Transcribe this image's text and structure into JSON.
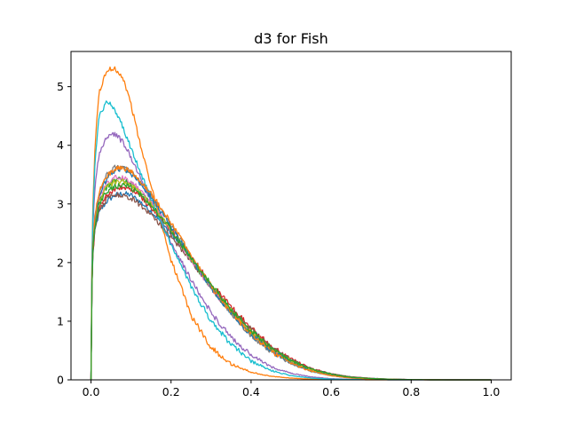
{
  "chart_data": {
    "type": "line",
    "title": "d3 for Fish",
    "xlabel": "",
    "ylabel": "",
    "xlim": [
      -0.05,
      1.05
    ],
    "ylim": [
      0,
      5.6
    ],
    "x_ticks": [
      0.0,
      0.2,
      0.4,
      0.6,
      0.8,
      1.0
    ],
    "x_tick_labels": [
      "0.0",
      "0.2",
      "0.4",
      "0.6",
      "0.8",
      "1.0"
    ],
    "y_ticks": [
      0,
      1,
      2,
      3,
      4,
      5
    ],
    "y_tick_labels": [
      "0",
      "1",
      "2",
      "3",
      "4",
      "5"
    ],
    "grid": false,
    "legend": "none",
    "x": [
      0.0,
      0.003,
      0.01,
      0.02,
      0.04,
      0.06,
      0.08,
      0.1,
      0.12,
      0.15,
      0.2,
      0.25,
      0.3,
      0.35,
      0.4,
      0.45,
      0.5,
      0.55,
      0.6,
      0.65,
      0.7,
      0.75,
      0.8,
      0.85,
      0.9,
      0.95,
      1.0
    ],
    "series": [
      {
        "color": "#1f77b4",
        "values": [
          0,
          2.0,
          2.55,
          2.85,
          3.05,
          3.15,
          3.18,
          3.15,
          3.05,
          2.88,
          2.5,
          2.05,
          1.6,
          1.2,
          0.85,
          0.55,
          0.33,
          0.18,
          0.1,
          0.05,
          0.025,
          0.01,
          0.005,
          0.002,
          0.001,
          0.0,
          0.0
        ]
      },
      {
        "color": "#ff7f0e",
        "values": [
          0,
          2.6,
          4.0,
          4.9,
          5.28,
          5.32,
          5.15,
          4.7,
          4.1,
          3.3,
          2.05,
          1.1,
          0.55,
          0.27,
          0.13,
          0.06,
          0.03,
          0.012,
          0.005,
          0.002,
          0.001,
          0.0,
          0.0,
          0.0,
          0.0,
          0.0,
          0.0
        ]
      },
      {
        "color": "#2ca02c",
        "values": [
          0,
          2.1,
          2.7,
          3.05,
          3.3,
          3.4,
          3.42,
          3.35,
          3.22,
          3.0,
          2.55,
          2.05,
          1.57,
          1.15,
          0.8,
          0.5,
          0.3,
          0.16,
          0.08,
          0.04,
          0.02,
          0.008,
          0.003,
          0.001,
          0.0,
          0.0,
          0.0
        ]
      },
      {
        "color": "#d62728",
        "values": [
          0,
          2.0,
          2.6,
          2.95,
          3.15,
          3.25,
          3.28,
          3.25,
          3.15,
          2.95,
          2.55,
          2.1,
          1.65,
          1.25,
          0.88,
          0.58,
          0.35,
          0.19,
          0.1,
          0.05,
          0.025,
          0.01,
          0.005,
          0.002,
          0.001,
          0.0,
          0.0
        ]
      },
      {
        "color": "#9467bd",
        "values": [
          0,
          2.4,
          3.3,
          3.85,
          4.15,
          4.2,
          4.05,
          3.8,
          3.5,
          3.05,
          2.35,
          1.7,
          1.15,
          0.72,
          0.42,
          0.22,
          0.11,
          0.05,
          0.02,
          0.008,
          0.003,
          0.001,
          0.0,
          0.0,
          0.0,
          0.0,
          0.0
        ]
      },
      {
        "color": "#8c564b",
        "values": [
          0,
          2.05,
          2.6,
          2.9,
          3.1,
          3.15,
          3.15,
          3.1,
          3.0,
          2.82,
          2.45,
          2.02,
          1.6,
          1.2,
          0.86,
          0.56,
          0.34,
          0.19,
          0.1,
          0.05,
          0.025,
          0.01,
          0.005,
          0.002,
          0.001,
          0.0,
          0.0
        ]
      },
      {
        "color": "#e377c2",
        "values": [
          0,
          2.1,
          2.7,
          3.1,
          3.35,
          3.45,
          3.45,
          3.38,
          3.25,
          3.02,
          2.55,
          2.05,
          1.57,
          1.15,
          0.8,
          0.51,
          0.3,
          0.16,
          0.08,
          0.04,
          0.018,
          0.008,
          0.003,
          0.001,
          0.0,
          0.0,
          0.0
        ]
      },
      {
        "color": "#7f7f7f",
        "values": [
          0,
          2.15,
          2.8,
          3.2,
          3.5,
          3.62,
          3.62,
          3.55,
          3.4,
          3.15,
          2.65,
          2.1,
          1.58,
          1.13,
          0.76,
          0.48,
          0.28,
          0.15,
          0.07,
          0.03,
          0.014,
          0.006,
          0.002,
          0.001,
          0.0,
          0.0,
          0.0
        ]
      },
      {
        "color": "#bcbd22",
        "values": [
          0,
          2.1,
          2.7,
          3.05,
          3.3,
          3.38,
          3.38,
          3.32,
          3.2,
          3.0,
          2.57,
          2.08,
          1.6,
          1.18,
          0.82,
          0.53,
          0.32,
          0.17,
          0.09,
          0.04,
          0.02,
          0.008,
          0.003,
          0.001,
          0.0,
          0.0,
          0.0
        ]
      },
      {
        "color": "#17becf",
        "values": [
          0,
          2.5,
          3.7,
          4.5,
          4.75,
          4.6,
          4.3,
          3.95,
          3.6,
          3.1,
          2.3,
          1.6,
          1.0,
          0.6,
          0.32,
          0.16,
          0.07,
          0.03,
          0.012,
          0.005,
          0.002,
          0.001,
          0.0,
          0.0,
          0.0,
          0.0,
          0.0
        ]
      },
      {
        "color": "#1f77b4",
        "values": [
          0,
          2.15,
          2.75,
          3.15,
          3.45,
          3.58,
          3.6,
          3.52,
          3.38,
          3.12,
          2.62,
          2.08,
          1.57,
          1.13,
          0.77,
          0.49,
          0.29,
          0.15,
          0.075,
          0.035,
          0.015,
          0.006,
          0.002,
          0.001,
          0.0,
          0.0,
          0.0
        ]
      },
      {
        "color": "#ff7f0e",
        "values": [
          0,
          2.15,
          2.8,
          3.2,
          3.48,
          3.6,
          3.62,
          3.55,
          3.42,
          3.18,
          2.68,
          2.12,
          1.6,
          1.15,
          0.78,
          0.49,
          0.28,
          0.15,
          0.072,
          0.033,
          0.014,
          0.006,
          0.002,
          0.001,
          0.0,
          0.0,
          0.0
        ]
      },
      {
        "color": "#2ca02c",
        "values": [
          0,
          2.05,
          2.65,
          3.0,
          3.22,
          3.3,
          3.32,
          3.28,
          3.18,
          2.98,
          2.56,
          2.08,
          1.63,
          1.2,
          0.84,
          0.55,
          0.33,
          0.18,
          0.095,
          0.045,
          0.022,
          0.009,
          0.004,
          0.001,
          0.0,
          0.0,
          0.0
        ]
      }
    ]
  }
}
